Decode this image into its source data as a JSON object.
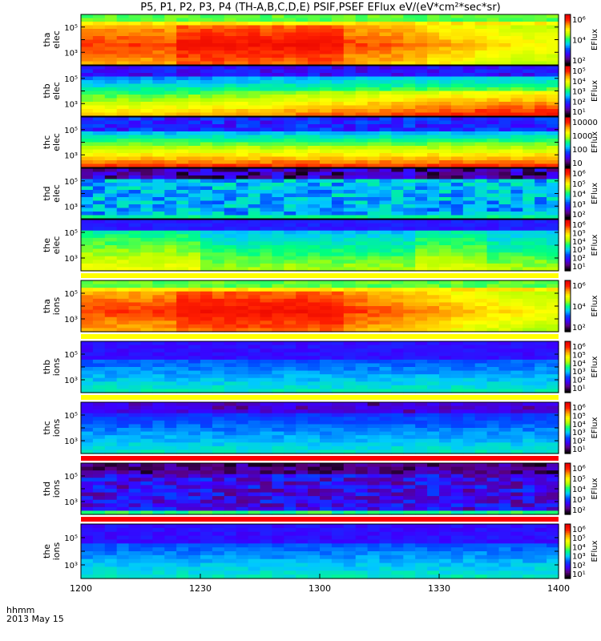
{
  "title": "P5, P1, P2, P3, P4 (TH-A,B,C,D,E) PSIF,PSEF EFlux eV/(eV*cm²*sec*sr)",
  "footer": {
    "time_label": "hhmm",
    "date_label": "2013 May 15"
  },
  "colors": {
    "colorbar_stops": [
      "#000000",
      "#5a007f",
      "#3c00ff",
      "#0046ff",
      "#00c8ff",
      "#00ff80",
      "#b4ff00",
      "#ffff00",
      "#ffa000",
      "#ff1e00",
      "#e60000"
    ],
    "separator_yellow": "#ffff00",
    "separator_red": "#ff0000"
  },
  "chart_data": {
    "type": "heatmap",
    "title": "P5, P1, P2, P3, P4 (TH-A,B,C,D,E) PSIF,PSEF EFlux eV/(eV*cm²*sec*sr)",
    "x_tick_labels": [
      "1200",
      "1230",
      "1300",
      "1330",
      "1400"
    ],
    "x_range": [
      "12:00",
      "14:00"
    ],
    "panels": [
      {
        "name": "tha elec",
        "ylabel": [
          "tha",
          "elec"
        ],
        "y_ticks": [
          "10⁵",
          "10³"
        ],
        "cbar_label": "EFlux",
        "cbar_ticks": [
          "10⁶",
          "10⁴",
          "10²"
        ],
        "pattern": "warm",
        "dividerAfter": false
      },
      {
        "name": "thb elec",
        "ylabel": [
          "thb",
          "elec"
        ],
        "y_ticks": [
          "10⁵",
          "10³"
        ],
        "cbar_label": "EFlux",
        "cbar_ticks": [
          "10⁵",
          "10⁴",
          "10³",
          "10²",
          "10¹"
        ],
        "pattern": "coolgreen",
        "dividerAfter": false
      },
      {
        "name": "thc elec",
        "ylabel": [
          "thc",
          "elec"
        ],
        "y_ticks": [
          "10⁵",
          "10³"
        ],
        "cbar_label": "EFlux",
        "cbar_ticks": [
          "10000",
          "1000",
          "100",
          "10"
        ],
        "pattern": "coolgreen2",
        "dividerAfter": false
      },
      {
        "name": "thd elec",
        "ylabel": [
          "thd",
          "elec"
        ],
        "y_ticks": [
          "10⁵",
          "10³"
        ],
        "cbar_label": "EFlux",
        "cbar_ticks": [
          "10⁶",
          "10⁵",
          "10⁴",
          "10³",
          "10²"
        ],
        "pattern": "noisy",
        "dividerAfter": false
      },
      {
        "name": "the elec",
        "ylabel": [
          "the",
          "elec"
        ],
        "y_ticks": [
          "10⁵",
          "10³"
        ],
        "cbar_label": "EFlux",
        "cbar_ticks": [
          "10⁶",
          "10⁵",
          "10⁴",
          "10³",
          "10²",
          "10¹"
        ],
        "pattern": "greenblue",
        "dividerAfter": "yellow"
      },
      {
        "name": "tha ions",
        "ylabel": [
          "tha",
          "ions"
        ],
        "y_ticks": [
          "10⁵",
          "10³"
        ],
        "cbar_label": "EFlux",
        "cbar_ticks": [
          "10⁶",
          "10⁴",
          "10²"
        ],
        "pattern": "warm",
        "dividerAfter": "yellow"
      },
      {
        "name": "thb ions",
        "ylabel": [
          "thb",
          "ions"
        ],
        "y_ticks": [
          "10⁵",
          "10³"
        ],
        "cbar_label": "EFlux",
        "cbar_ticks": [
          "10⁶",
          "10⁵",
          "10⁴",
          "10³",
          "10²",
          "10¹"
        ],
        "pattern": "blue",
        "dividerAfter": "yellow"
      },
      {
        "name": "thc ions",
        "ylabel": [
          "thc",
          "ions"
        ],
        "y_ticks": [
          "10⁵",
          "10³"
        ],
        "cbar_label": "EFlux",
        "cbar_ticks": [
          "10⁶",
          "10⁵",
          "10⁴",
          "10³",
          "10²",
          "10¹"
        ],
        "pattern": "bluepurple",
        "dividerAfter": "red"
      },
      {
        "name": "thd ions",
        "ylabel": [
          "thd",
          "ions"
        ],
        "y_ticks": [
          "10⁵",
          "10³"
        ],
        "cbar_label": "EFlux",
        "cbar_ticks": [
          "10⁶",
          "10⁵",
          "10⁴",
          "10³",
          "10²"
        ],
        "pattern": "noisyions",
        "dividerAfter": "red"
      },
      {
        "name": "the ions",
        "ylabel": [
          "the",
          "ions"
        ],
        "y_ticks": [
          "10⁵",
          "10³"
        ],
        "cbar_label": "EFlux",
        "cbar_ticks": [
          "10⁶",
          "10⁵",
          "10⁴",
          "10³",
          "10²",
          "10¹"
        ],
        "pattern": "blue",
        "dividerAfter": false
      }
    ]
  }
}
